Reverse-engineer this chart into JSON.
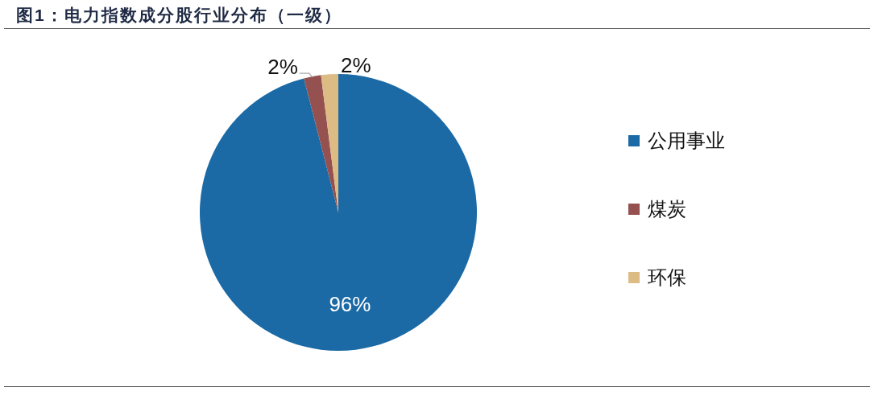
{
  "chart_data": {
    "type": "pie",
    "title": "图1：电力指数成分股行业分布（一级）",
    "categories": [
      "公用事业",
      "煤炭",
      "环保"
    ],
    "values": [
      96,
      2,
      2
    ],
    "colors": [
      "#1b6aa5",
      "#955150",
      "#dcbb85"
    ],
    "value_labels": [
      "96%",
      "2%",
      "2%"
    ],
    "legend": "right"
  }
}
